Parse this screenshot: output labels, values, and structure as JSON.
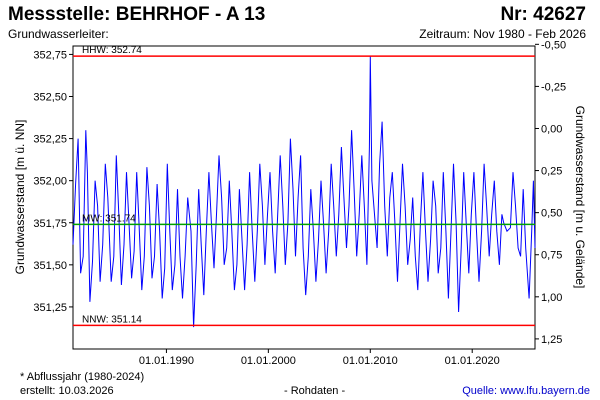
{
  "header": {
    "title": "Messstelle: BEHRHOF - A 13",
    "number": "Nr: 42627",
    "aquifer": "Grundwasserleiter:",
    "period": "Zeitraum: Nov 1980 - Feb 2026"
  },
  "footer": {
    "note": "* Abflussjahr (1980-2024)",
    "created": "erstellt:  10.03.2026",
    "raw": "- Rohdaten -",
    "source": "Quelle: www.lfu.bayern.de"
  },
  "colors": {
    "series": "#0000ff",
    "extremes": "#ff0000",
    "mean": "#00a000"
  },
  "chart_data": {
    "type": "line",
    "ylabel": "Grundwasserstand [m ü. NN]",
    "ylabel_right": "Grundwasserstand [m u. Gelände]",
    "xlim": [
      "1980-11-01",
      "2026-02-28"
    ],
    "ylim": [
      351.0,
      352.8
    ],
    "ylim_right": [
      1.31,
      -0.49
    ],
    "x_ticks": [
      {
        "date": "1990-01-01",
        "label": "01.01.1990"
      },
      {
        "date": "2000-01-01",
        "label": "01.01.2000"
      },
      {
        "date": "2010-01-01",
        "label": "01.01.2010"
      },
      {
        "date": "2020-01-01",
        "label": "01.01.2020"
      }
    ],
    "y_ticks": [
      {
        "value": 352.75,
        "label": "352,75"
      },
      {
        "value": 352.5,
        "label": "352,50"
      },
      {
        "value": 352.25,
        "label": "352,25"
      },
      {
        "value": 352.0,
        "label": "352,00"
      },
      {
        "value": 351.75,
        "label": "351,75"
      },
      {
        "value": 351.5,
        "label": "351,50"
      },
      {
        "value": 351.25,
        "label": "351,25"
      }
    ],
    "y_ticks_right": [
      {
        "value": -0.5,
        "label": "-0,50"
      },
      {
        "value": -0.25,
        "label": "-0,25"
      },
      {
        "value": 0.0,
        "label": "0,00"
      },
      {
        "value": 0.25,
        "label": "0,25"
      },
      {
        "value": 0.5,
        "label": "0,50"
      },
      {
        "value": 0.75,
        "label": "0,75"
      },
      {
        "value": 1.0,
        "label": "1,00"
      },
      {
        "value": 1.25,
        "label": "1,25"
      }
    ],
    "reference_lines": [
      {
        "name": "HHW",
        "label": "HHW: 352.74",
        "value": 352.74,
        "color": "#ff0000"
      },
      {
        "name": "MW",
        "label": "MW: 351.74",
        "value": 351.74,
        "color": "#00a000"
      },
      {
        "name": "NNW",
        "label": "NNW: 351.14",
        "value": 351.14,
        "color": "#ff0000"
      }
    ],
    "series": [
      {
        "color": "#0000ff",
        "points": [
          [
            "1980-11-01",
            351.62
          ],
          [
            "1981-02-01",
            351.98
          ],
          [
            "1981-05-01",
            352.25
          ],
          [
            "1981-08-01",
            351.45
          ],
          [
            "1981-11-01",
            351.55
          ],
          [
            "1982-02-01",
            352.3
          ],
          [
            "1982-04-01",
            352.05
          ],
          [
            "1982-07-01",
            351.28
          ],
          [
            "1982-10-01",
            351.52
          ],
          [
            "1983-01-01",
            352.0
          ],
          [
            "1983-04-01",
            351.85
          ],
          [
            "1983-07-01",
            351.4
          ],
          [
            "1983-10-01",
            351.62
          ],
          [
            "1984-01-01",
            352.1
          ],
          [
            "1984-04-01",
            351.9
          ],
          [
            "1984-08-01",
            351.4
          ],
          [
            "1984-11-01",
            351.55
          ],
          [
            "1985-02-01",
            352.15
          ],
          [
            "1985-05-01",
            351.8
          ],
          [
            "1985-08-01",
            351.38
          ],
          [
            "1985-11-01",
            351.62
          ],
          [
            "1986-02-01",
            352.05
          ],
          [
            "1986-05-01",
            351.75
          ],
          [
            "1986-08-01",
            351.42
          ],
          [
            "1986-11-01",
            351.58
          ],
          [
            "1987-02-01",
            352.05
          ],
          [
            "1987-05-01",
            351.72
          ],
          [
            "1987-08-01",
            351.35
          ],
          [
            "1987-11-01",
            351.55
          ],
          [
            "1988-02-01",
            352.08
          ],
          [
            "1988-05-01",
            351.85
          ],
          [
            "1988-08-01",
            351.42
          ],
          [
            "1988-11-01",
            351.55
          ],
          [
            "1989-02-01",
            351.98
          ],
          [
            "1989-05-01",
            351.7
          ],
          [
            "1989-08-01",
            351.3
          ],
          [
            "1989-11-01",
            351.48
          ],
          [
            "1990-02-01",
            352.1
          ],
          [
            "1990-05-01",
            351.7
          ],
          [
            "1990-08-01",
            351.35
          ],
          [
            "1990-11-01",
            351.5
          ],
          [
            "1991-02-01",
            351.95
          ],
          [
            "1991-05-01",
            351.55
          ],
          [
            "1991-08-01",
            351.3
          ],
          [
            "1991-11-01",
            351.55
          ],
          [
            "1992-02-01",
            351.9
          ],
          [
            "1992-06-01",
            351.7
          ],
          [
            "1992-09-01",
            351.13
          ],
          [
            "1992-12-01",
            351.5
          ],
          [
            "1993-03-01",
            351.95
          ],
          [
            "1993-06-01",
            351.62
          ],
          [
            "1993-09-01",
            351.32
          ],
          [
            "1993-12-01",
            351.7
          ],
          [
            "1994-03-01",
            352.05
          ],
          [
            "1994-06-01",
            351.75
          ],
          [
            "1994-09-01",
            351.48
          ],
          [
            "1994-12-01",
            351.8
          ],
          [
            "1995-03-01",
            352.15
          ],
          [
            "1995-06-01",
            351.9
          ],
          [
            "1995-09-01",
            351.5
          ],
          [
            "1995-12-01",
            351.6
          ],
          [
            "1996-03-01",
            352.0
          ],
          [
            "1996-06-01",
            351.7
          ],
          [
            "1996-09-01",
            351.35
          ],
          [
            "1996-12-01",
            351.5
          ],
          [
            "1997-03-01",
            351.95
          ],
          [
            "1997-06-01",
            351.65
          ],
          [
            "1997-09-01",
            351.35
          ],
          [
            "1997-12-01",
            351.62
          ],
          [
            "1998-03-01",
            352.05
          ],
          [
            "1998-06-01",
            351.7
          ],
          [
            "1998-09-01",
            351.4
          ],
          [
            "1998-12-01",
            351.7
          ],
          [
            "1999-03-01",
            352.1
          ],
          [
            "1999-06-01",
            351.85
          ],
          [
            "1999-09-01",
            351.5
          ],
          [
            "1999-12-01",
            351.8
          ],
          [
            "2000-03-01",
            352.05
          ],
          [
            "2000-06-01",
            351.7
          ],
          [
            "2000-09-01",
            351.45
          ],
          [
            "2000-12-01",
            351.8
          ],
          [
            "2001-03-01",
            352.15
          ],
          [
            "2001-06-01",
            351.85
          ],
          [
            "2001-09-01",
            351.5
          ],
          [
            "2001-12-01",
            351.75
          ],
          [
            "2002-03-01",
            352.25
          ],
          [
            "2002-06-01",
            351.95
          ],
          [
            "2002-09-01",
            351.55
          ],
          [
            "2002-12-01",
            351.9
          ],
          [
            "2003-03-01",
            352.15
          ],
          [
            "2003-06-01",
            351.6
          ],
          [
            "2003-09-01",
            351.32
          ],
          [
            "2003-12-01",
            351.55
          ],
          [
            "2004-03-01",
            351.95
          ],
          [
            "2004-06-01",
            351.7
          ],
          [
            "2004-09-01",
            351.4
          ],
          [
            "2004-12-01",
            351.65
          ],
          [
            "2005-03-01",
            352.0
          ],
          [
            "2005-06-01",
            351.75
          ],
          [
            "2005-09-01",
            351.45
          ],
          [
            "2005-12-01",
            351.7
          ],
          [
            "2006-03-01",
            352.1
          ],
          [
            "2006-06-01",
            351.85
          ],
          [
            "2006-09-01",
            351.55
          ],
          [
            "2006-12-01",
            351.8
          ],
          [
            "2007-03-01",
            352.2
          ],
          [
            "2007-06-01",
            351.9
          ],
          [
            "2007-09-01",
            351.6
          ],
          [
            "2007-12-01",
            351.85
          ],
          [
            "2008-03-01",
            352.3
          ],
          [
            "2008-06-01",
            351.95
          ],
          [
            "2008-09-01",
            351.55
          ],
          [
            "2008-12-01",
            351.8
          ],
          [
            "2009-03-01",
            352.15
          ],
          [
            "2009-06-01",
            351.85
          ],
          [
            "2009-09-01",
            351.5
          ],
          [
            "2009-12-01",
            352.2
          ],
          [
            "2010-01-01",
            352.74
          ],
          [
            "2010-03-01",
            352.0
          ],
          [
            "2010-06-01",
            351.8
          ],
          [
            "2010-09-01",
            351.6
          ],
          [
            "2010-12-01",
            352.1
          ],
          [
            "2011-03-01",
            352.35
          ],
          [
            "2011-06-01",
            351.85
          ],
          [
            "2011-09-01",
            351.55
          ],
          [
            "2011-12-01",
            351.9
          ],
          [
            "2012-03-01",
            352.05
          ],
          [
            "2012-06-01",
            351.75
          ],
          [
            "2012-09-01",
            351.4
          ],
          [
            "2012-12-01",
            351.75
          ],
          [
            "2013-03-01",
            352.1
          ],
          [
            "2013-06-01",
            351.85
          ],
          [
            "2013-09-01",
            351.5
          ],
          [
            "2013-12-01",
            351.65
          ],
          [
            "2014-03-01",
            351.9
          ],
          [
            "2014-06-01",
            351.55
          ],
          [
            "2014-09-01",
            351.35
          ],
          [
            "2014-12-01",
            351.75
          ],
          [
            "2015-03-01",
            352.05
          ],
          [
            "2015-06-01",
            351.7
          ],
          [
            "2015-09-01",
            351.4
          ],
          [
            "2015-12-01",
            351.65
          ],
          [
            "2016-03-01",
            352.0
          ],
          [
            "2016-06-01",
            351.85
          ],
          [
            "2016-09-01",
            351.45
          ],
          [
            "2016-12-01",
            351.6
          ],
          [
            "2017-03-01",
            352.05
          ],
          [
            "2017-06-01",
            351.7
          ],
          [
            "2017-09-01",
            351.3
          ],
          [
            "2017-12-01",
            351.7
          ],
          [
            "2018-03-01",
            352.1
          ],
          [
            "2018-06-01",
            351.75
          ],
          [
            "2018-09-01",
            351.22
          ],
          [
            "2018-12-01",
            351.6
          ],
          [
            "2019-03-01",
            352.05
          ],
          [
            "2019-06-01",
            351.75
          ],
          [
            "2019-09-01",
            351.45
          ],
          [
            "2019-12-01",
            351.8
          ],
          [
            "2020-03-01",
            352.05
          ],
          [
            "2020-06-01",
            351.7
          ],
          [
            "2020-09-01",
            351.4
          ],
          [
            "2020-12-01",
            351.7
          ],
          [
            "2021-03-01",
            352.1
          ],
          [
            "2021-06-01",
            351.85
          ],
          [
            "2021-09-01",
            351.55
          ],
          [
            "2021-12-01",
            351.8
          ],
          [
            "2022-03-01",
            352.0
          ],
          [
            "2022-06-01",
            351.7
          ],
          [
            "2022-09-01",
            351.5
          ],
          [
            "2022-12-01",
            351.8
          ],
          [
            "2023-02-01",
            351.75
          ],
          [
            "2023-06-01",
            351.7
          ],
          [
            "2023-10-01",
            351.72
          ],
          [
            "2024-01-01",
            352.05
          ],
          [
            "2024-04-01",
            351.85
          ],
          [
            "2024-07-01",
            351.6
          ],
          [
            "2024-10-01",
            351.55
          ],
          [
            "2025-01-01",
            351.95
          ],
          [
            "2025-04-01",
            351.6
          ],
          [
            "2025-08-01",
            351.3
          ],
          [
            "2025-11-01",
            351.7
          ],
          [
            "2026-01-01",
            352.0
          ],
          [
            "2026-02-28",
            351.6
          ]
        ]
      }
    ]
  }
}
